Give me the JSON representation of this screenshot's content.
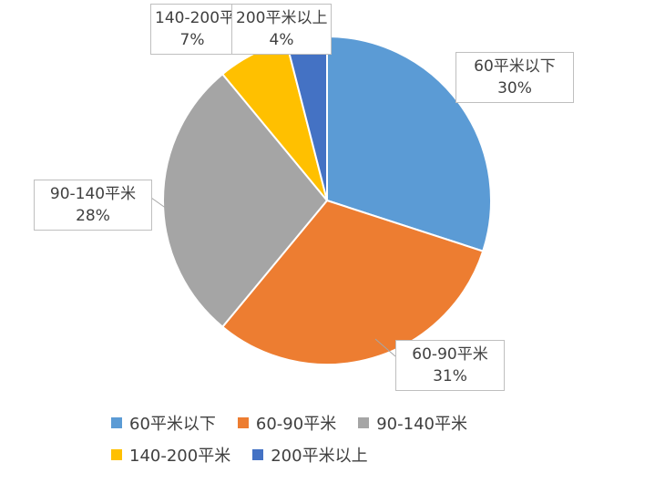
{
  "chart_data": {
    "type": "pie",
    "categories": [
      "60平米以下",
      "60-90平米",
      "90-140平米",
      "140-200平米",
      "200平米以上"
    ],
    "values": [
      30,
      31,
      28,
      7,
      4
    ],
    "value_labels": [
      "30%",
      "31%",
      "28%",
      "7%",
      "4%"
    ],
    "colors": [
      "#5B9BD5",
      "#ED7D31",
      "#A5A5A5",
      "#FFC000",
      "#4472C4"
    ],
    "start_angle": "top (12 o'clock)",
    "direction": "clockwise",
    "legend_position": "bottom",
    "title": ""
  }
}
